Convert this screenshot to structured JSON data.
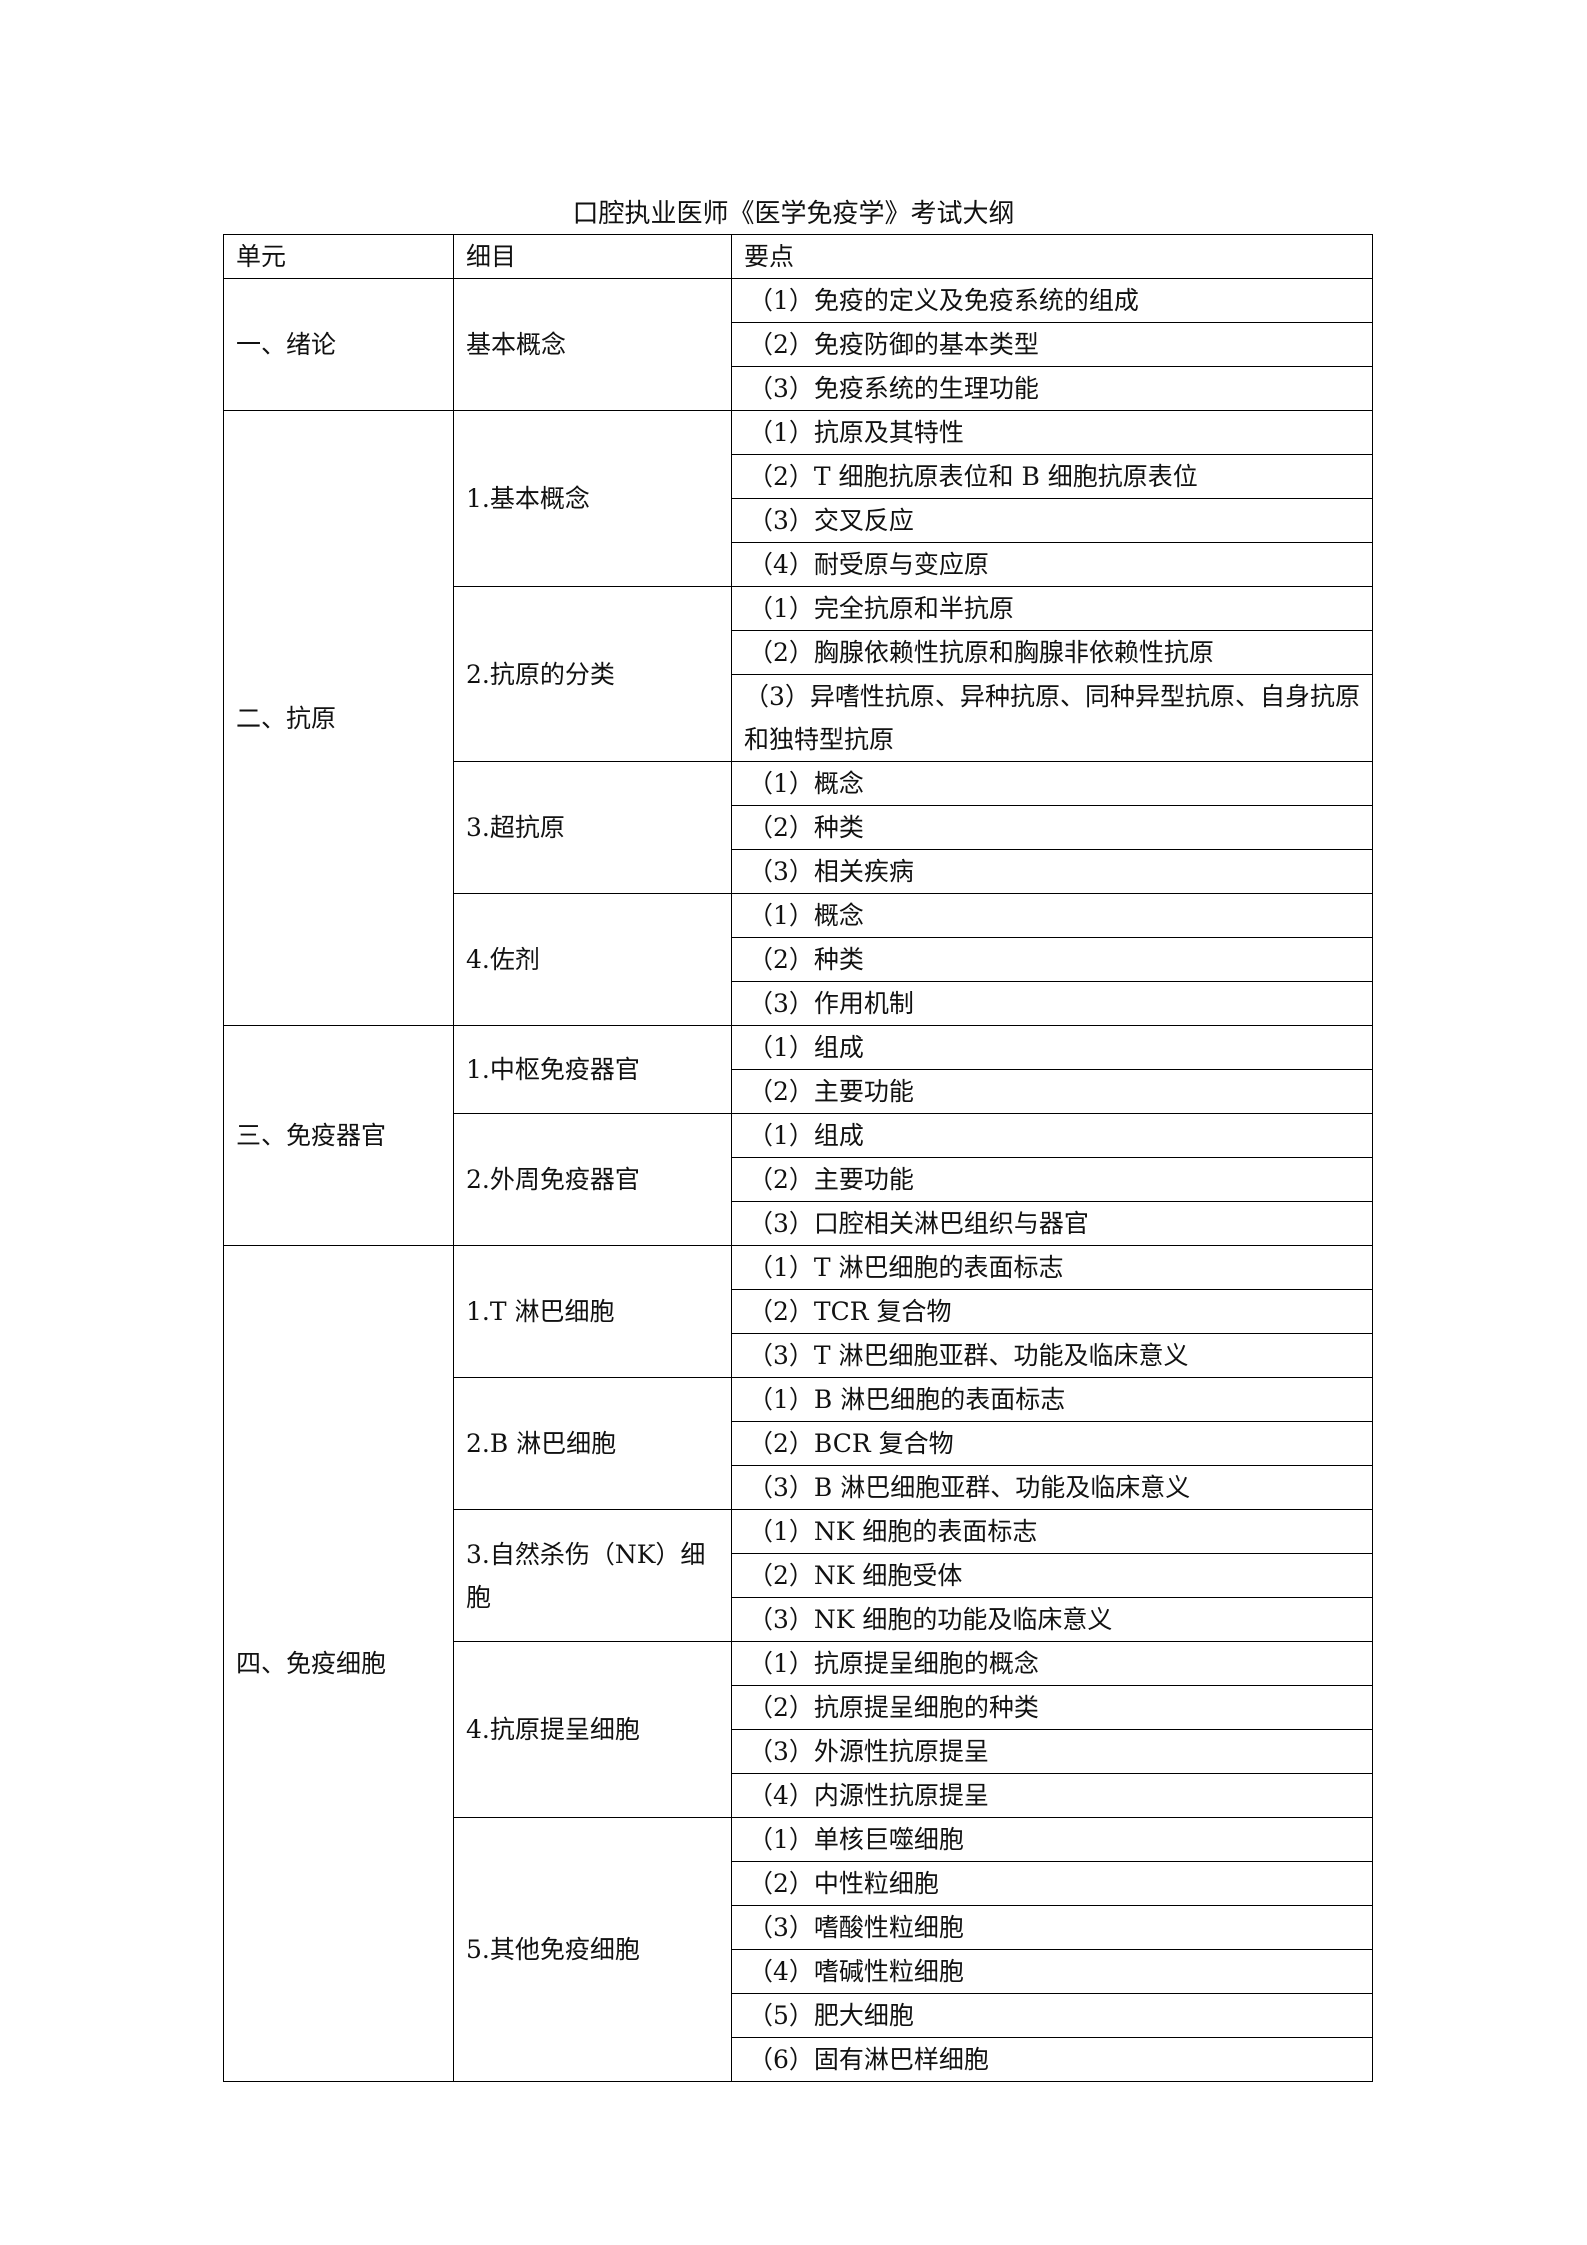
{
  "title": "口腔执业医师《医学免疫学》考试大纲",
  "headers": [
    "单元",
    "细目",
    "要点"
  ],
  "units": [
    {
      "name": "一、绪论",
      "items": [
        {
          "name": "基本概念",
          "points": [
            "（1）免疫的定义及免疫系统的组成",
            "（2）免疫防御的基本类型",
            "（3）免疫系统的生理功能"
          ]
        }
      ]
    },
    {
      "name": "二、抗原",
      "items": [
        {
          "name": "1.基本概念",
          "points": [
            "（1）抗原及其特性",
            "（2）T 细胞抗原表位和 B 细胞抗原表位",
            "（3）交叉反应",
            "（4）耐受原与变应原"
          ]
        },
        {
          "name": "2.抗原的分类",
          "points": [
            "（1）完全抗原和半抗原",
            "（2）胸腺依赖性抗原和胸腺非依赖性抗原",
            "（3）异嗜性抗原、异种抗原、同种异型抗原、自身抗原和独特型抗原"
          ]
        },
        {
          "name": "3.超抗原",
          "points": [
            "（1）概念",
            "（2）种类",
            "（3）相关疾病"
          ]
        },
        {
          "name": "4.佐剂",
          "points": [
            "（1）概念",
            "（2）种类",
            "（3）作用机制"
          ]
        }
      ]
    },
    {
      "name": "三、免疫器官",
      "items": [
        {
          "name": "1.中枢免疫器官",
          "points": [
            "（1）组成",
            "（2）主要功能"
          ]
        },
        {
          "name": "2.外周免疫器官",
          "points": [
            "（1）组成",
            "（2）主要功能",
            "（3）口腔相关淋巴组织与器官"
          ]
        }
      ]
    },
    {
      "name": "四、免疫细胞",
      "items": [
        {
          "name": "1.T 淋巴细胞",
          "points": [
            "（1）T 淋巴细胞的表面标志",
            "（2）TCR 复合物",
            "（3）T 淋巴细胞亚群、功能及临床意义"
          ]
        },
        {
          "name": "2.B 淋巴细胞",
          "points": [
            "（1）B 淋巴细胞的表面标志",
            "（2）BCR 复合物",
            "（3）B 淋巴细胞亚群、功能及临床意义"
          ]
        },
        {
          "name": "3.自然杀伤（NK）细胞",
          "points": [
            "（1）NK 细胞的表面标志",
            "（2）NK 细胞受体",
            "（3）NK 细胞的功能及临床意义"
          ]
        },
        {
          "name": "4.抗原提呈细胞",
          "points": [
            "（1）抗原提呈细胞的概念",
            "（2）抗原提呈细胞的种类",
            "（3）外源性抗原提呈",
            "（4）内源性抗原提呈"
          ]
        },
        {
          "name": "5.其他免疫细胞",
          "points": [
            "（1）单核巨噬细胞",
            "（2）中性粒细胞",
            "（3）嗜酸性粒细胞",
            "（4）嗜碱性粒细胞",
            "（5）肥大细胞",
            "（6）固有淋巴样细胞"
          ]
        }
      ]
    }
  ]
}
